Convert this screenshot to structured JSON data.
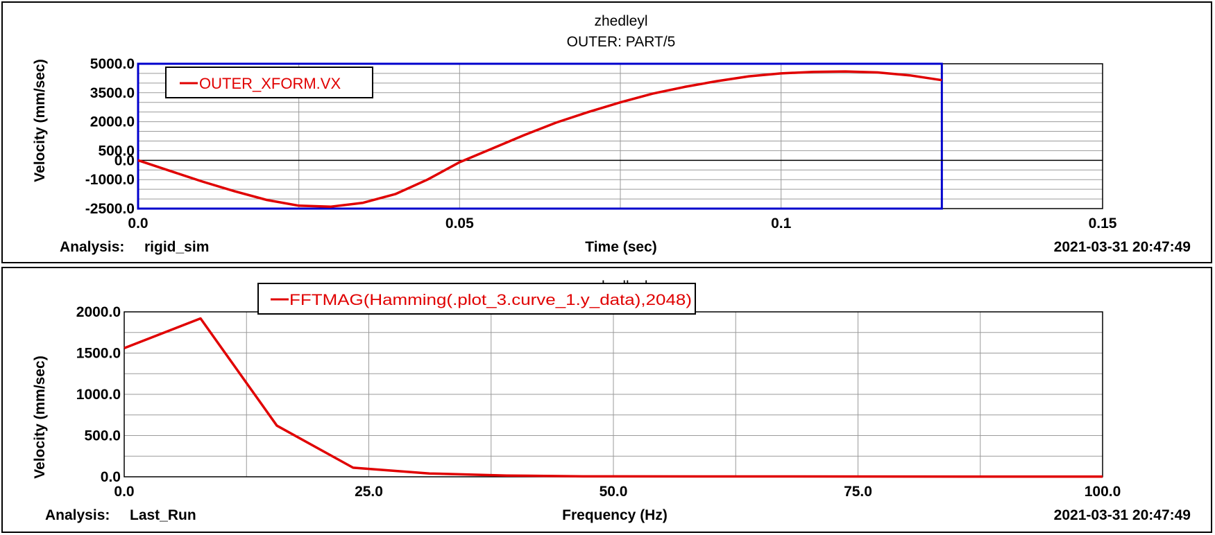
{
  "colors": {
    "curve": "#e00000",
    "frame_highlight": "#0000cc",
    "grid": "#9a9a9a",
    "text": "#000000"
  },
  "chart_data": [
    {
      "type": "line",
      "title": "zhedleyl",
      "subtitle": "OUTER: PART/5",
      "xlabel": "Time (sec)",
      "ylabel": "Velocity (mm/sec)",
      "xlim": [
        0.0,
        0.15
      ],
      "ylim": [
        -2500.0,
        5000.0
      ],
      "x_ticks": [
        "0.0",
        "0.05",
        "0.1",
        "0.15"
      ],
      "y_ticks": [
        "-2500.0",
        "-1000.0",
        "0.0",
        "500.0",
        "2000.0",
        "3500.0",
        "5000.0"
      ],
      "grid": true,
      "legend_position": "top-left",
      "analysis_label": "Analysis:",
      "analysis_name": "rigid_sim",
      "timestamp": "2021-03-31 20:47:49",
      "series": [
        {
          "name": "OUTER_XFORM.VX",
          "x": [
            0.0,
            0.005,
            0.01,
            0.015,
            0.02,
            0.025,
            0.03,
            0.035,
            0.04,
            0.045,
            0.05,
            0.055,
            0.06,
            0.065,
            0.07,
            0.075,
            0.08,
            0.085,
            0.09,
            0.095,
            0.1,
            0.105,
            0.11,
            0.115,
            0.12,
            0.125
          ],
          "y": [
            0,
            -550,
            -1100,
            -1600,
            -2050,
            -2350,
            -2400,
            -2200,
            -1750,
            -1000,
            -100,
            600,
            1300,
            1950,
            2500,
            3000,
            3450,
            3800,
            4100,
            4350,
            4500,
            4580,
            4600,
            4550,
            4400,
            4150
          ]
        }
      ]
    },
    {
      "type": "line",
      "title": "zhedleyl",
      "xlabel": "Frequency (Hz)",
      "ylabel": "Velocity (mm/sec)",
      "xlim": [
        0.0,
        100.0
      ],
      "ylim": [
        0.0,
        2000.0
      ],
      "x_ticks": [
        "0.0",
        "25.0",
        "50.0",
        "75.0",
        "100.0"
      ],
      "y_ticks": [
        "0.0",
        "500.0",
        "1000.0",
        "1500.0",
        "2000.0"
      ],
      "grid": true,
      "legend_position": "top-center",
      "analysis_label": "Analysis:",
      "analysis_name": "Last_Run",
      "timestamp": "2021-03-31 20:47:49",
      "series": [
        {
          "name": "FFTMAG(Hamming(.plot_3.curve_1.y_data),2048)",
          "x": [
            0.0,
            7.8,
            15.6,
            23.4,
            31.2,
            39.1,
            46.9,
            100.0
          ],
          "y": [
            1560,
            1920,
            620,
            110,
            40,
            15,
            5,
            2
          ]
        }
      ]
    }
  ]
}
